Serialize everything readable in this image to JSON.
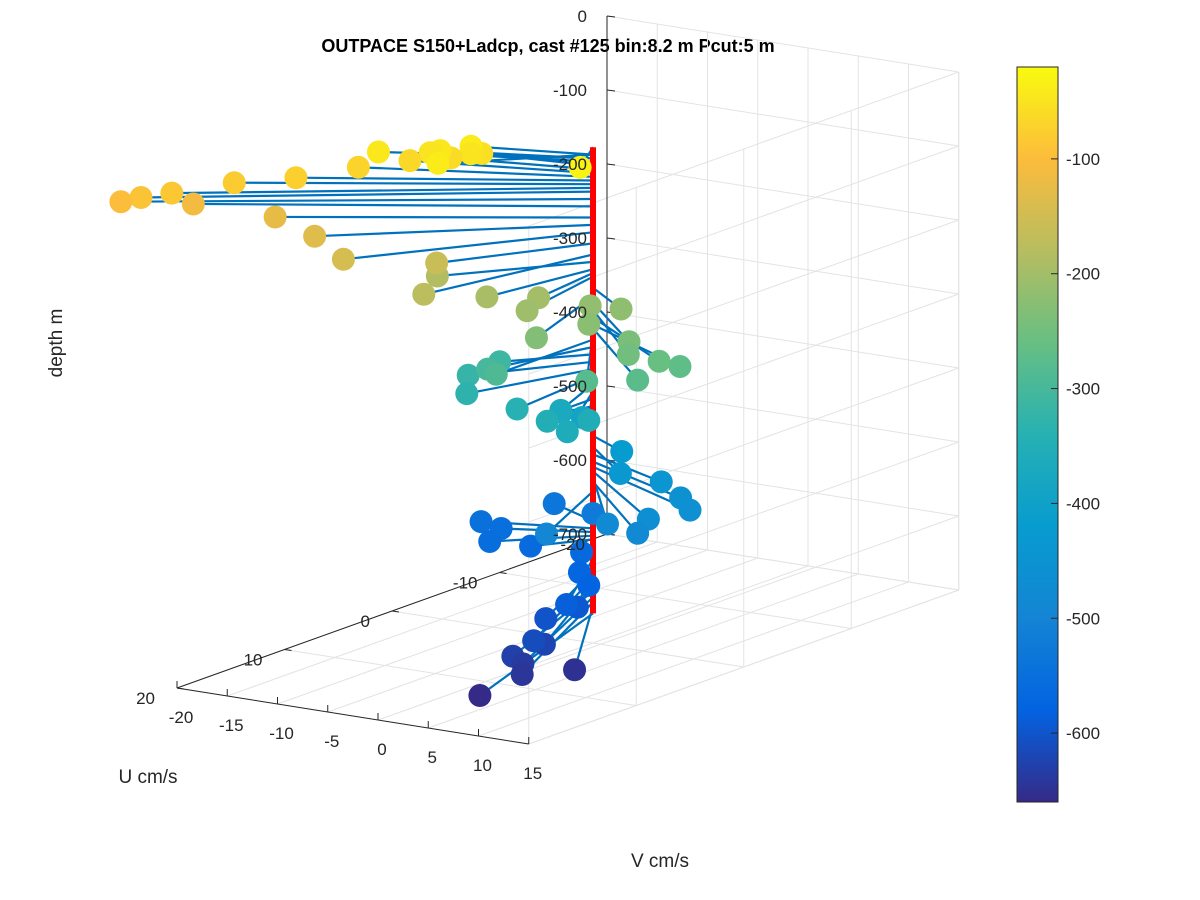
{
  "chart_data": {
    "type": "scatter",
    "title": "OUTPACE S150+Ladcp, cast #125 bin:8.2 m  Pcut:5 m",
    "xlabel": "U cm/s",
    "ylabel": "V cm/s",
    "zlabel": "depth m",
    "xlim": [
      -20,
      20
    ],
    "ylim": [
      -20,
      15
    ],
    "zlim": [
      -700,
      0
    ],
    "x_ticks": [
      "-20",
      "-10",
      "0",
      "10",
      "20"
    ],
    "y_ticks": [
      "-20",
      "-15",
      "-10",
      "-5",
      "0",
      "5",
      "10",
      "15"
    ],
    "z_ticks": [
      "0",
      "-100",
      "-200",
      "-300",
      "-400",
      "-500",
      "-600",
      "-700"
    ],
    "grid": true,
    "colorbar": {
      "label": "",
      "range": [
        -660,
        -20
      ],
      "ticks": [
        "-100",
        "-200",
        "-300",
        "-400",
        "-500",
        "-600"
      ],
      "colormap": "parula"
    },
    "stem_color": "#0072BD",
    "axis_line_color": "#FF0000",
    "series": [
      {
        "points": [
          {
            "u": 4,
            "v": 3,
            "depth": -30
          },
          {
            "u": 6,
            "v": -9,
            "depth": -40
          },
          {
            "u": 2,
            "v": -10,
            "depth": -40
          },
          {
            "u": 3,
            "v": -12,
            "depth": -45
          },
          {
            "u": 5,
            "v": -16,
            "depth": -45
          },
          {
            "u": 3,
            "v": -13,
            "depth": -50
          },
          {
            "u": 2,
            "v": -10,
            "depth": -50
          },
          {
            "u": 1,
            "v": -10,
            "depth": -55
          },
          {
            "u": 2,
            "v": -12,
            "depth": -60
          },
          {
            "u": 3,
            "v": -15,
            "depth": -65
          },
          {
            "u": 5,
            "v": -18,
            "depth": -70
          },
          {
            "u": 8,
            "v": -21,
            "depth": -75
          },
          {
            "u": 10,
            "v": -25,
            "depth": -80
          },
          {
            "u": 13,
            "v": -28,
            "depth": -85
          },
          {
            "u": 14,
            "v": -30,
            "depth": -90
          },
          {
            "u": 14,
            "v": -32,
            "depth": -100
          },
          {
            "u": 11,
            "v": -28,
            "depth": -110
          },
          {
            "u": 9,
            "v": -22,
            "depth": -125
          },
          {
            "u": 10,
            "v": -17,
            "depth": -135
          },
          {
            "u": 12,
            "v": -12,
            "depth": -145
          },
          {
            "u": 8,
            "v": -7,
            "depth": -160
          },
          {
            "u": 12,
            "v": -4,
            "depth": -175
          },
          {
            "u": 7,
            "v": -8,
            "depth": -185
          },
          {
            "u": 8,
            "v": -2,
            "depth": -195
          },
          {
            "u": 6,
            "v": 1,
            "depth": -200
          },
          {
            "u": 8,
            "v": 2,
            "depth": -205
          },
          {
            "u": 4,
            "v": 4,
            "depth": -215
          },
          {
            "u": 3,
            "v": 6,
            "depth": -220
          },
          {
            "u": 6,
            "v": 6,
            "depth": -225
          },
          {
            "u": 9,
            "v": 4,
            "depth": -232
          },
          {
            "u": 6,
            "v": 10,
            "depth": -240
          },
          {
            "u": 7,
            "v": 11,
            "depth": -250
          },
          {
            "u": 6,
            "v": 13,
            "depth": -260
          },
          {
            "u": 5,
            "v": 14,
            "depth": -270
          },
          {
            "u": 8,
            "v": 13,
            "depth": -275
          },
          {
            "u": 9,
            "v": 9,
            "depth": -280
          },
          {
            "u": 9,
            "v": 0,
            "depth": -290
          },
          {
            "u": 7,
            "v": -3,
            "depth": -300
          },
          {
            "u": 4,
            "v": -5,
            "depth": -310
          },
          {
            "u": 6,
            "v": -6,
            "depth": -320
          },
          {
            "u": 8,
            "v": -4,
            "depth": -330
          },
          {
            "u": 8,
            "v": 1,
            "depth": -340
          },
          {
            "u": 8,
            "v": 4,
            "depth": -350
          },
          {
            "u": 6,
            "v": 6,
            "depth": -355
          },
          {
            "u": 8,
            "v": 6,
            "depth": -360
          },
          {
            "u": 3,
            "v": 0,
            "depth": -370
          },
          {
            "u": 2,
            "v": -1,
            "depth": -380
          },
          {
            "u": 1,
            "v": 0,
            "depth": -390
          },
          {
            "u": 2,
            "v": 5,
            "depth": -420
          },
          {
            "u": 4,
            "v": 7,
            "depth": -435
          },
          {
            "u": 3,
            "v": 10,
            "depth": -445
          },
          {
            "u": 4,
            "v": 13,
            "depth": -455
          },
          {
            "u": 5,
            "v": 15,
            "depth": -462
          },
          {
            "u": 7,
            "v": 13,
            "depth": -468
          },
          {
            "u": 8,
            "v": 10,
            "depth": -476
          },
          {
            "u": 8,
            "v": 13,
            "depth": -482
          },
          {
            "u": 9,
            "v": 5,
            "depth": -495
          },
          {
            "u": 0,
            "v": 0,
            "depth": -525
          },
          {
            "u": -2,
            "v": -6,
            "depth": -535
          },
          {
            "u": 2,
            "v": -9,
            "depth": -545
          },
          {
            "u": 2,
            "v": -7,
            "depth": -550
          },
          {
            "u": 4,
            "v": -6,
            "depth": -555
          },
          {
            "u": 3,
            "v": -3,
            "depth": -560
          },
          {
            "u": 2,
            "v": 1,
            "depth": -565
          },
          {
            "u": 5,
            "v": 4,
            "depth": -570
          },
          {
            "u": 6,
            "v": 6,
            "depth": -578
          },
          {
            "u": 9,
            "v": 7,
            "depth": -586
          },
          {
            "u": 8,
            "v": 7,
            "depth": -595
          },
          {
            "u": 10,
            "v": 6,
            "depth": -602
          },
          {
            "u": 13,
            "v": 8,
            "depth": -612
          },
          {
            "u": 12,
            "v": 8,
            "depth": -622
          },
          {
            "u": 14,
            "v": 7,
            "depth": -630
          },
          {
            "u": 14,
            "v": 8,
            "depth": -638
          },
          {
            "u": 15,
            "v": 9,
            "depth": -645
          },
          {
            "u": 12,
            "v": 11,
            "depth": -650
          },
          {
            "u": 18,
            "v": 8,
            "depth": -660
          }
        ]
      }
    ]
  }
}
